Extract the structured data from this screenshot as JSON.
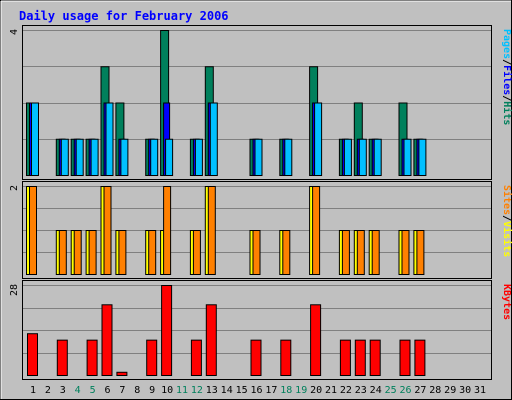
{
  "colors": {
    "background": "#C0C0C0",
    "title": "#0000FF",
    "hits": "#00805C",
    "files": "#0000FF",
    "pages": "#00C0FF",
    "visits": "#FFFF00",
    "sites": "#FF8000",
    "kbytes": "#FF0000",
    "weekend_day": "#00805C",
    "weekday": "#000000",
    "grid": "#808080"
  },
  "chart_data": {
    "type": "bar",
    "title": "Daily usage for February 2006",
    "days": [
      "1",
      "2",
      "3",
      "4",
      "5",
      "6",
      "7",
      "8",
      "9",
      "10",
      "11",
      "12",
      "13",
      "14",
      "15",
      "16",
      "17",
      "18",
      "19",
      "20",
      "21",
      "22",
      "23",
      "24",
      "25",
      "26",
      "27",
      "28",
      "29",
      "30",
      "31"
    ],
    "weekend_days": [
      "4",
      "5",
      "11",
      "12",
      "18",
      "19",
      "25",
      "26"
    ],
    "panels": [
      {
        "name": "top",
        "ymax_label": "4",
        "ymax": 4,
        "legend": [
          {
            "label": "Pages",
            "color": "#00C0FF"
          },
          {
            "label": "/",
            "color": "#000000"
          },
          {
            "label": "Files",
            "color": "#0000FF"
          },
          {
            "label": "/",
            "color": "#000000"
          },
          {
            "label": "Hits",
            "color": "#00805C"
          }
        ],
        "series": [
          {
            "name": "Hits",
            "values": [
              2,
              0,
              1,
              1,
              1,
              3,
              2,
              0,
              1,
              4,
              0,
              1,
              3,
              0,
              0,
              1,
              0,
              1,
              0,
              3,
              0,
              1,
              2,
              1,
              0,
              2,
              1,
              0,
              0,
              0,
              0
            ]
          },
          {
            "name": "Files",
            "values": [
              2,
              0,
              1,
              1,
              1,
              2,
              1,
              0,
              1,
              2,
              0,
              1,
              2,
              0,
              0,
              1,
              0,
              1,
              0,
              2,
              0,
              1,
              1,
              1,
              0,
              1,
              1,
              0,
              0,
              0,
              0
            ]
          },
          {
            "name": "Pages",
            "values": [
              2,
              0,
              1,
              1,
              1,
              2,
              1,
              0,
              1,
              1,
              0,
              1,
              2,
              0,
              0,
              1,
              0,
              1,
              0,
              2,
              0,
              1,
              1,
              1,
              0,
              1,
              1,
              0,
              0,
              0,
              0
            ]
          }
        ]
      },
      {
        "name": "middle",
        "ymax_label": "2",
        "ymax": 2,
        "legend": [
          {
            "label": "Sites",
            "color": "#FF8000"
          },
          {
            "label": "/",
            "color": "#000000"
          },
          {
            "label": "Visits",
            "color": "#FFFF00"
          }
        ],
        "series": [
          {
            "name": "Visits",
            "values": [
              2,
              0,
              1,
              1,
              1,
              2,
              1,
              0,
              1,
              1,
              0,
              1,
              2,
              0,
              0,
              1,
              0,
              1,
              0,
              2,
              0,
              1,
              1,
              1,
              0,
              1,
              1,
              0,
              0,
              0,
              0
            ]
          },
          {
            "name": "Sites",
            "values": [
              2,
              0,
              1,
              1,
              1,
              2,
              1,
              0,
              1,
              2,
              0,
              1,
              2,
              0,
              0,
              1,
              0,
              1,
              0,
              2,
              0,
              1,
              1,
              1,
              0,
              1,
              1,
              0,
              0,
              0,
              0
            ]
          }
        ]
      },
      {
        "name": "bottom",
        "ymax_label": "28",
        "ymax": 28,
        "legend": [
          {
            "label": "KBytes",
            "color": "#FF0000"
          }
        ],
        "series": [
          {
            "name": "KBytes",
            "values": [
              13,
              0,
              11,
              0,
              11,
              22,
              1,
              0,
              11,
              28,
              0,
              11,
              22,
              0,
              0,
              11,
              0,
              11,
              0,
              22,
              0,
              11,
              11,
              11,
              0,
              11,
              11,
              0,
              0,
              0,
              0
            ]
          }
        ]
      }
    ]
  }
}
